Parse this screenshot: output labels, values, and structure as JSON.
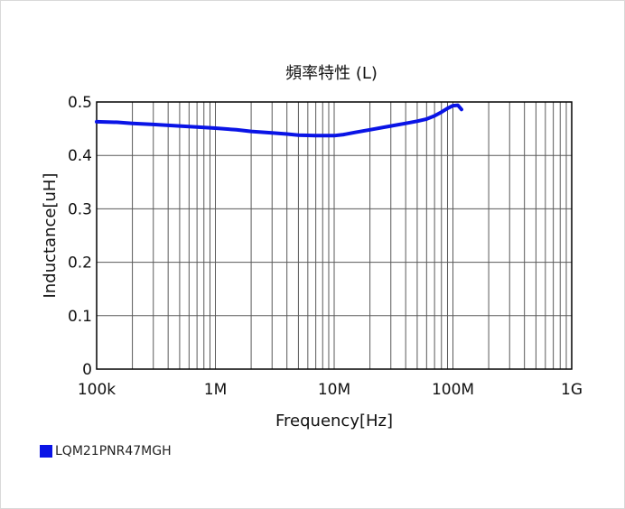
{
  "chart_data": {
    "type": "line",
    "title": "頻率特性 (L)",
    "xlabel": "Frequency[Hz]",
    "ylabel": "Inductance[uH]",
    "x_scale": "log",
    "xlim": [
      100000,
      1000000000
    ],
    "ylim": [
      0,
      0.5
    ],
    "x_ticks": [
      {
        "value": 100000,
        "label": "100k"
      },
      {
        "value": 1000000,
        "label": "1M"
      },
      {
        "value": 10000000,
        "label": "10M"
      },
      {
        "value": 100000000,
        "label": "100M"
      },
      {
        "value": 1000000000,
        "label": "1G"
      }
    ],
    "y_ticks": [
      {
        "value": 0,
        "label": "0"
      },
      {
        "value": 0.1,
        "label": "0.1"
      },
      {
        "value": 0.2,
        "label": "0.2"
      },
      {
        "value": 0.3,
        "label": "0.3"
      },
      {
        "value": 0.4,
        "label": "0.4"
      },
      {
        "value": 0.5,
        "label": "0.5"
      }
    ],
    "grid": true,
    "legend_position": "bottom-left",
    "series": [
      {
        "name": "LQM21PNR47MGH",
        "color": "#0a14e6",
        "points": [
          [
            100000,
            0.463
          ],
          [
            150000,
            0.462
          ],
          [
            200000,
            0.46
          ],
          [
            300000,
            0.458
          ],
          [
            500000,
            0.455
          ],
          [
            700000,
            0.453
          ],
          [
            1000000,
            0.451
          ],
          [
            1500000,
            0.448
          ],
          [
            2000000,
            0.445
          ],
          [
            3000000,
            0.442
          ],
          [
            4000000,
            0.44
          ],
          [
            5000000,
            0.438
          ],
          [
            7000000,
            0.437
          ],
          [
            10000000,
            0.437
          ],
          [
            12000000,
            0.439
          ],
          [
            15000000,
            0.443
          ],
          [
            20000000,
            0.448
          ],
          [
            30000000,
            0.455
          ],
          [
            40000000,
            0.46
          ],
          [
            50000000,
            0.464
          ],
          [
            60000000,
            0.468
          ],
          [
            70000000,
            0.474
          ],
          [
            80000000,
            0.481
          ],
          [
            90000000,
            0.488
          ],
          [
            100000000,
            0.493
          ],
          [
            110000000,
            0.494
          ],
          [
            118000000,
            0.486
          ]
        ]
      }
    ]
  }
}
